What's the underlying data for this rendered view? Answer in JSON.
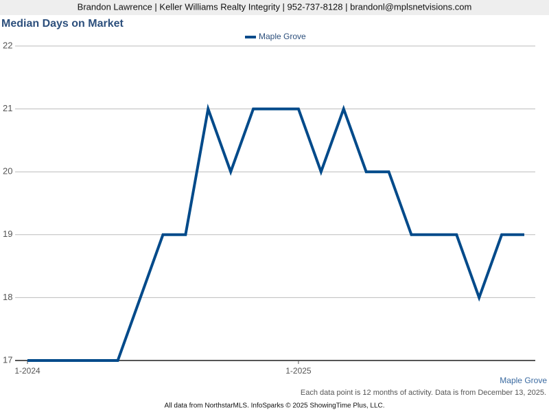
{
  "header": {
    "text": "Brandon Lawrence | Keller Williams Realty Integrity | 952-737-8128 | brandonl@mplsnetvisions.com"
  },
  "chart_data": {
    "type": "line",
    "title": "Median Days on Market",
    "categories": [
      "1-2024",
      null,
      null,
      null,
      null,
      null,
      null,
      null,
      null,
      null,
      null,
      null,
      "1-2025",
      null,
      null,
      null,
      null,
      null,
      null,
      null,
      null,
      null,
      null
    ],
    "series": [
      {
        "name": "Maple Grove",
        "color": "#004a8a",
        "values": [
          17,
          17,
          17,
          17,
          17,
          18,
          19,
          19,
          21,
          20,
          21,
          21,
          21,
          20,
          21,
          20,
          20,
          19,
          19,
          19,
          18,
          19,
          19
        ]
      }
    ],
    "ylim": [
      17,
      22
    ],
    "yticks": [
      17,
      18,
      19,
      20,
      21,
      22
    ],
    "grid": true,
    "legend": "top"
  },
  "footer": {
    "note": "Each data point is 12 months of activity. Data is from December 13, 2025.",
    "credit": "All data from NorthstarMLS. InfoSparks © 2025 ShowingTime Plus, LLC."
  }
}
